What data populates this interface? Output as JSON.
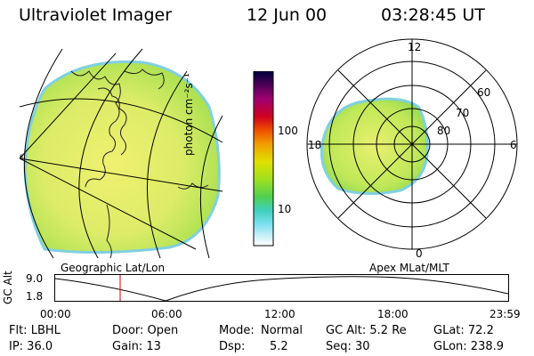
{
  "header": {
    "title": "Ultraviolet Imager",
    "date": "12 Jun 00",
    "time": "03:28:45 UT"
  },
  "colorbar": {
    "unit_label": "photon cm⁻²s⁻¹",
    "ticks": [
      "100",
      "10"
    ],
    "colors": [
      "#000040",
      "#3a0050",
      "#a00070",
      "#d00020",
      "#f05000",
      "#f0a000",
      "#e0e000",
      "#a0e020",
      "#50d050",
      "#40d0c0",
      "#80e0f0",
      "#d0f0f8",
      "#ffffff"
    ]
  },
  "geo_map": {
    "label": "Geographic Lat/Lon",
    "auroral_color": "#c8e860"
  },
  "polar_plot": {
    "label": "Apex MLat/MLT",
    "mlt_labels": {
      "top": "12",
      "left": "18",
      "right": "6",
      "bottom": "0"
    },
    "lat_labels": [
      "60",
      "70",
      "80"
    ]
  },
  "timeline": {
    "y_label": "GC Alt",
    "y_ticks": [
      "9.0",
      "1.8"
    ],
    "x_ticks": [
      "00:00",
      "06:00",
      "12:00",
      "18:00",
      "23:59"
    ],
    "current_marker_time": "03:28",
    "marker_color": "#d00000"
  },
  "info": {
    "filter": "Flt: LBHL",
    "ip": "IP: 36.0",
    "door": "Door: Open",
    "gain": "Gain: 13",
    "mode_label": "Mode:",
    "mode_value": "Normal",
    "dsp_label": "Dsp:",
    "dsp_value": "5.2",
    "gc_alt": "GC Alt: 5.2 Re",
    "seq": "Seq: 30",
    "glat": "GLat: 72.2",
    "glon": "GLon: 238.9"
  }
}
